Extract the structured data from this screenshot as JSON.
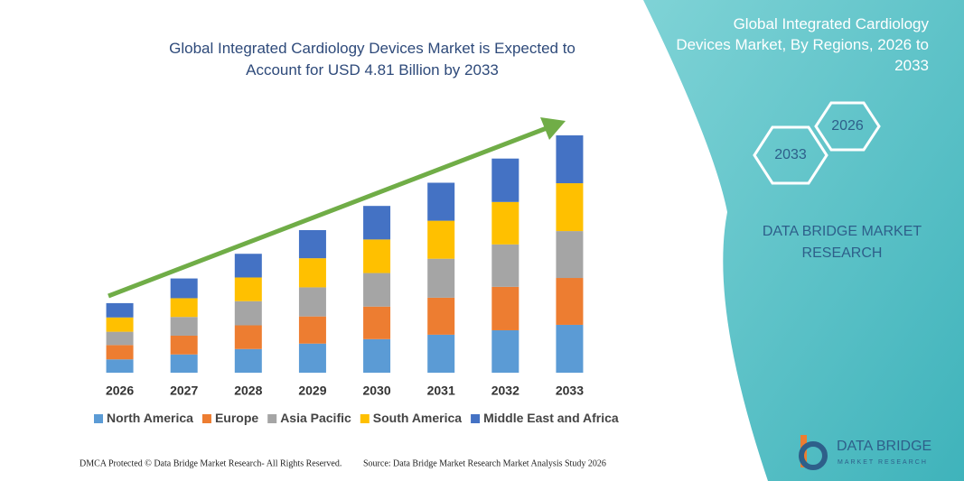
{
  "chart_data": {
    "type": "stacked-bar",
    "title": "Global Integrated Cardiology Devices Market is Expected to Account for USD 4.81 Billion by 2033",
    "categories": [
      "2026",
      "2027",
      "2028",
      "2029",
      "2030",
      "2031",
      "2032",
      "2033"
    ],
    "series": [
      {
        "name": "North America",
        "color": "#5b9bd5",
        "values": [
          0.27,
          0.37,
          0.48,
          0.59,
          0.68,
          0.77,
          0.86,
          0.97
        ]
      },
      {
        "name": "Europe",
        "color": "#ed7d31",
        "values": [
          0.29,
          0.38,
          0.48,
          0.55,
          0.66,
          0.75,
          0.88,
          0.95
        ]
      },
      {
        "name": "Asia Pacific",
        "color": "#a5a5a5",
        "values": [
          0.27,
          0.38,
          0.49,
          0.59,
          0.68,
          0.79,
          0.86,
          0.95
        ]
      },
      {
        "name": "South America",
        "color": "#ffc000",
        "values": [
          0.29,
          0.38,
          0.48,
          0.59,
          0.68,
          0.77,
          0.86,
          0.97
        ]
      },
      {
        "name": "Middle East and Africa",
        "color": "#4472c4",
        "values": [
          0.29,
          0.4,
          0.48,
          0.57,
          0.68,
          0.77,
          0.88,
          0.97
        ]
      }
    ],
    "legend": "bottom"
  },
  "panel": {
    "title": "Global Integrated Cardiology Devices Market, By Regions, 2026 to 2033",
    "hex_start": "2026",
    "hex_end": "2033",
    "brand": "DATA BRIDGE MARKET RESEARCH"
  },
  "logo": {
    "name": "DATA BRIDGE",
    "tagline": "MARKET RESEARCH"
  },
  "footer": {
    "left": "DMCA Protected © Data Bridge Market Research- All Rights Reserved.",
    "right": "Source: Data Bridge Market Research Market Analysis Study 2026"
  }
}
